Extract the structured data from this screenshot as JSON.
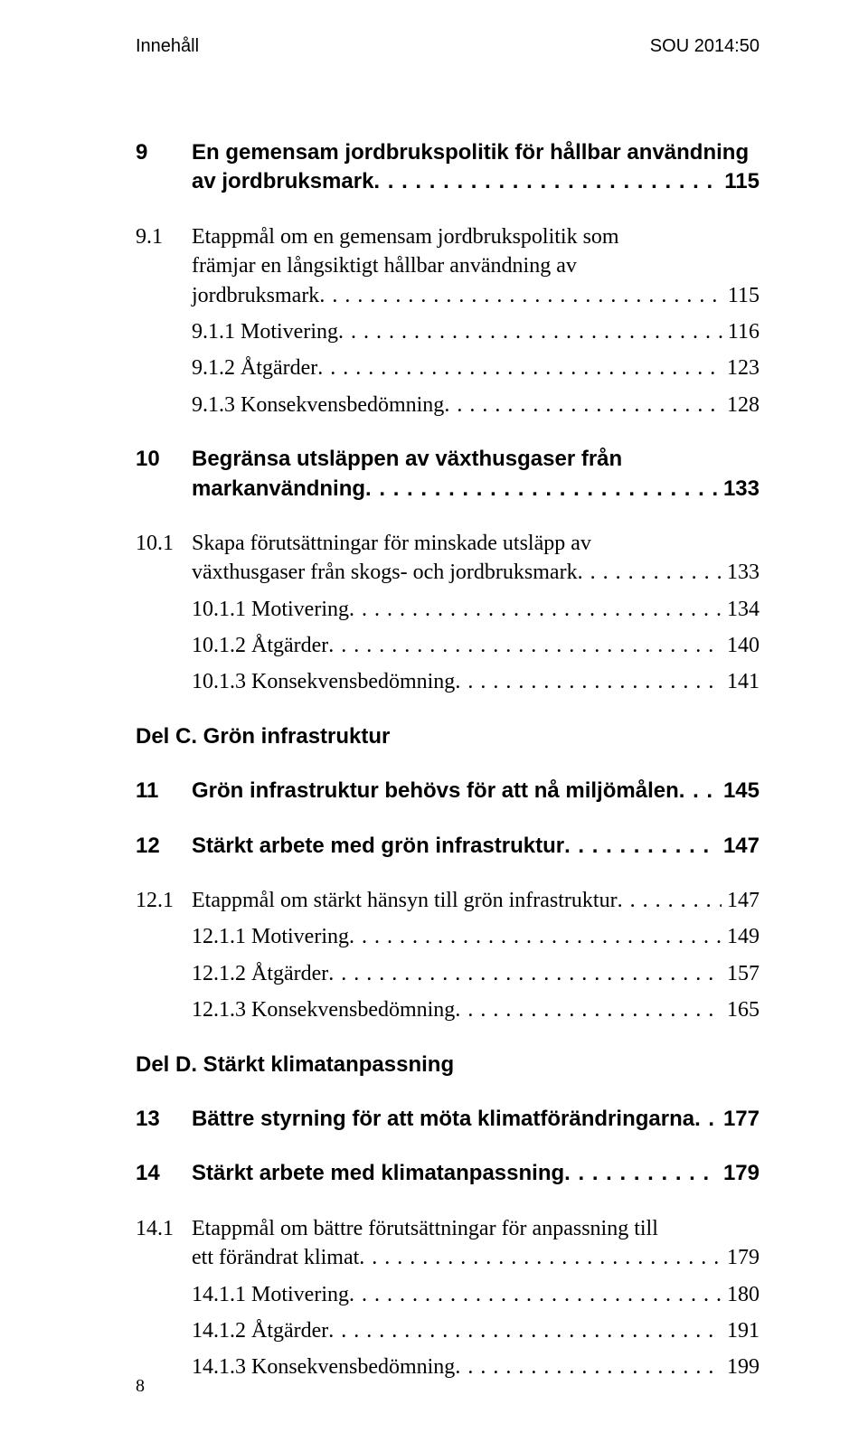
{
  "header": {
    "left": "Innehåll",
    "right": "SOU 2014:50"
  },
  "entries": [
    {
      "type": "chapter",
      "num": "9",
      "lines": [
        "En gemensam jordbrukspolitik för hållbar användning",
        "av jordbruksmark"
      ],
      "page": "115",
      "bold": true,
      "sans": true
    },
    {
      "type": "section",
      "num": "9.1",
      "lines": [
        "Etappmål om en gemensam jordbrukspolitik som",
        "främjar en långsiktigt hållbar användning av",
        "jordbruksmark"
      ],
      "page": "115"
    },
    {
      "type": "sub",
      "num": "9.1.1",
      "label": "Motivering",
      "page": "116"
    },
    {
      "type": "sub",
      "num": "9.1.2",
      "label": "Åtgärder",
      "page": "123"
    },
    {
      "type": "sub",
      "num": "9.1.3",
      "label": "Konsekvensbedömning",
      "page": "128"
    },
    {
      "type": "chapter",
      "num": "10",
      "lines": [
        "Begränsa utsläppen av växthusgaser från",
        "markanvändning"
      ],
      "page": "133",
      "bold": true,
      "sans": true
    },
    {
      "type": "section",
      "num": "10.1",
      "lines": [
        "Skapa förutsättningar för minskade utsläpp av",
        "växthusgaser från skogs- och jordbruksmark"
      ],
      "page": "133"
    },
    {
      "type": "sub",
      "num": "10.1.1",
      "label": "Motivering",
      "page": "134"
    },
    {
      "type": "sub",
      "num": "10.1.2",
      "label": "Åtgärder",
      "page": "140"
    },
    {
      "type": "sub",
      "num": "10.1.3",
      "label": "Konsekvensbedömning",
      "page": "141"
    },
    {
      "type": "part",
      "label": "Del C. Grön infrastruktur"
    },
    {
      "type": "chapter",
      "num": "11",
      "lines": [
        "Grön infrastruktur behövs för att nå miljömålen"
      ],
      "page": "145",
      "bold": true,
      "sans": true
    },
    {
      "type": "chapter",
      "num": "12",
      "lines": [
        "Stärkt arbete med grön infrastruktur"
      ],
      "page": "147",
      "bold": true,
      "sans": true
    },
    {
      "type": "section",
      "num": "12.1",
      "lines": [
        "Etappmål om stärkt hänsyn till grön infrastruktur"
      ],
      "page": "147"
    },
    {
      "type": "sub",
      "num": "12.1.1",
      "label": "Motivering",
      "page": "149"
    },
    {
      "type": "sub",
      "num": "12.1.2",
      "label": "Åtgärder",
      "page": "157"
    },
    {
      "type": "sub",
      "num": "12.1.3",
      "label": "Konsekvensbedömning",
      "page": "165"
    },
    {
      "type": "part",
      "label": "Del D. Stärkt klimatanpassning"
    },
    {
      "type": "chapter",
      "num": "13",
      "lines": [
        "Bättre styrning för att möta klimatförändringarna"
      ],
      "page": "177",
      "bold": true,
      "sans": true
    },
    {
      "type": "chapter",
      "num": "14",
      "lines": [
        "Stärkt arbete med klimatanpassning"
      ],
      "page": "179",
      "bold": true,
      "sans": true
    },
    {
      "type": "section",
      "num": "14.1",
      "lines": [
        "Etappmål om bättre förutsättningar för anpassning till",
        "ett förändrat klimat"
      ],
      "page": "179"
    },
    {
      "type": "sub",
      "num": "14.1.1",
      "label": "Motivering",
      "page": "180"
    },
    {
      "type": "sub",
      "num": "14.1.2",
      "label": "Åtgärder",
      "page": "191"
    },
    {
      "type": "sub",
      "num": "14.1.3",
      "label": "Konsekvensbedömning",
      "page": "199"
    }
  ],
  "pageNumber": "8",
  "style": {
    "numColWidth": 62,
    "fontSizeBody": 24,
    "fontSizeHeader": 20,
    "textColor": "#000000",
    "background": "#ffffff"
  }
}
